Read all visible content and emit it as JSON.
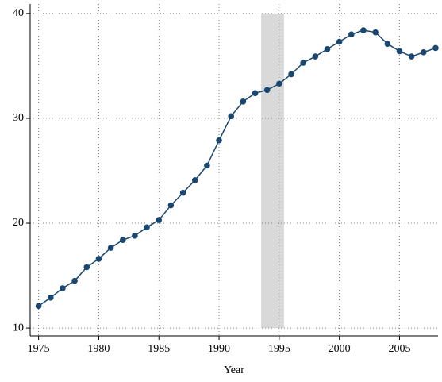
{
  "chart_data": {
    "type": "line",
    "x_label": "Year",
    "x": [
      1975,
      1976,
      1977,
      1978,
      1979,
      1980,
      1981,
      1982,
      1983,
      1984,
      1985,
      1986,
      1987,
      1988,
      1989,
      1990,
      1991,
      1992,
      1993,
      1994,
      1995,
      1996,
      1997,
      1998,
      1999,
      2000,
      2001,
      2002,
      2003,
      2004,
      2005,
      2006,
      2007,
      2008
    ],
    "series": [
      {
        "color": "#1a476f",
        "values": [
          12.1,
          12.9,
          13.8,
          14.5,
          15.8,
          16.6,
          17.65,
          18.4,
          18.8,
          19.6,
          20.3,
          21.7,
          22.9,
          24.1,
          25.5,
          27.9,
          30.2,
          31.6,
          32.4,
          32.7,
          33.3,
          34.2,
          35.3,
          35.9,
          36.6,
          37.3,
          38.0,
          38.4,
          38.2,
          37.1,
          36.4,
          35.9,
          36.3,
          36.7
        ]
      }
    ],
    "shaded_region": {
      "x": [
        1993.5,
        1995.4
      ],
      "y": [
        10,
        40
      ],
      "color": "#d9d9d9"
    },
    "xlim": [
      1974.3,
      2008.2
    ],
    "ylim": [
      9.25,
      40.9
    ],
    "xticks": [
      1975,
      1980,
      1985,
      1990,
      1995,
      2000,
      2005
    ],
    "yticks": [
      10,
      20,
      30,
      40
    ],
    "grid": true
  }
}
